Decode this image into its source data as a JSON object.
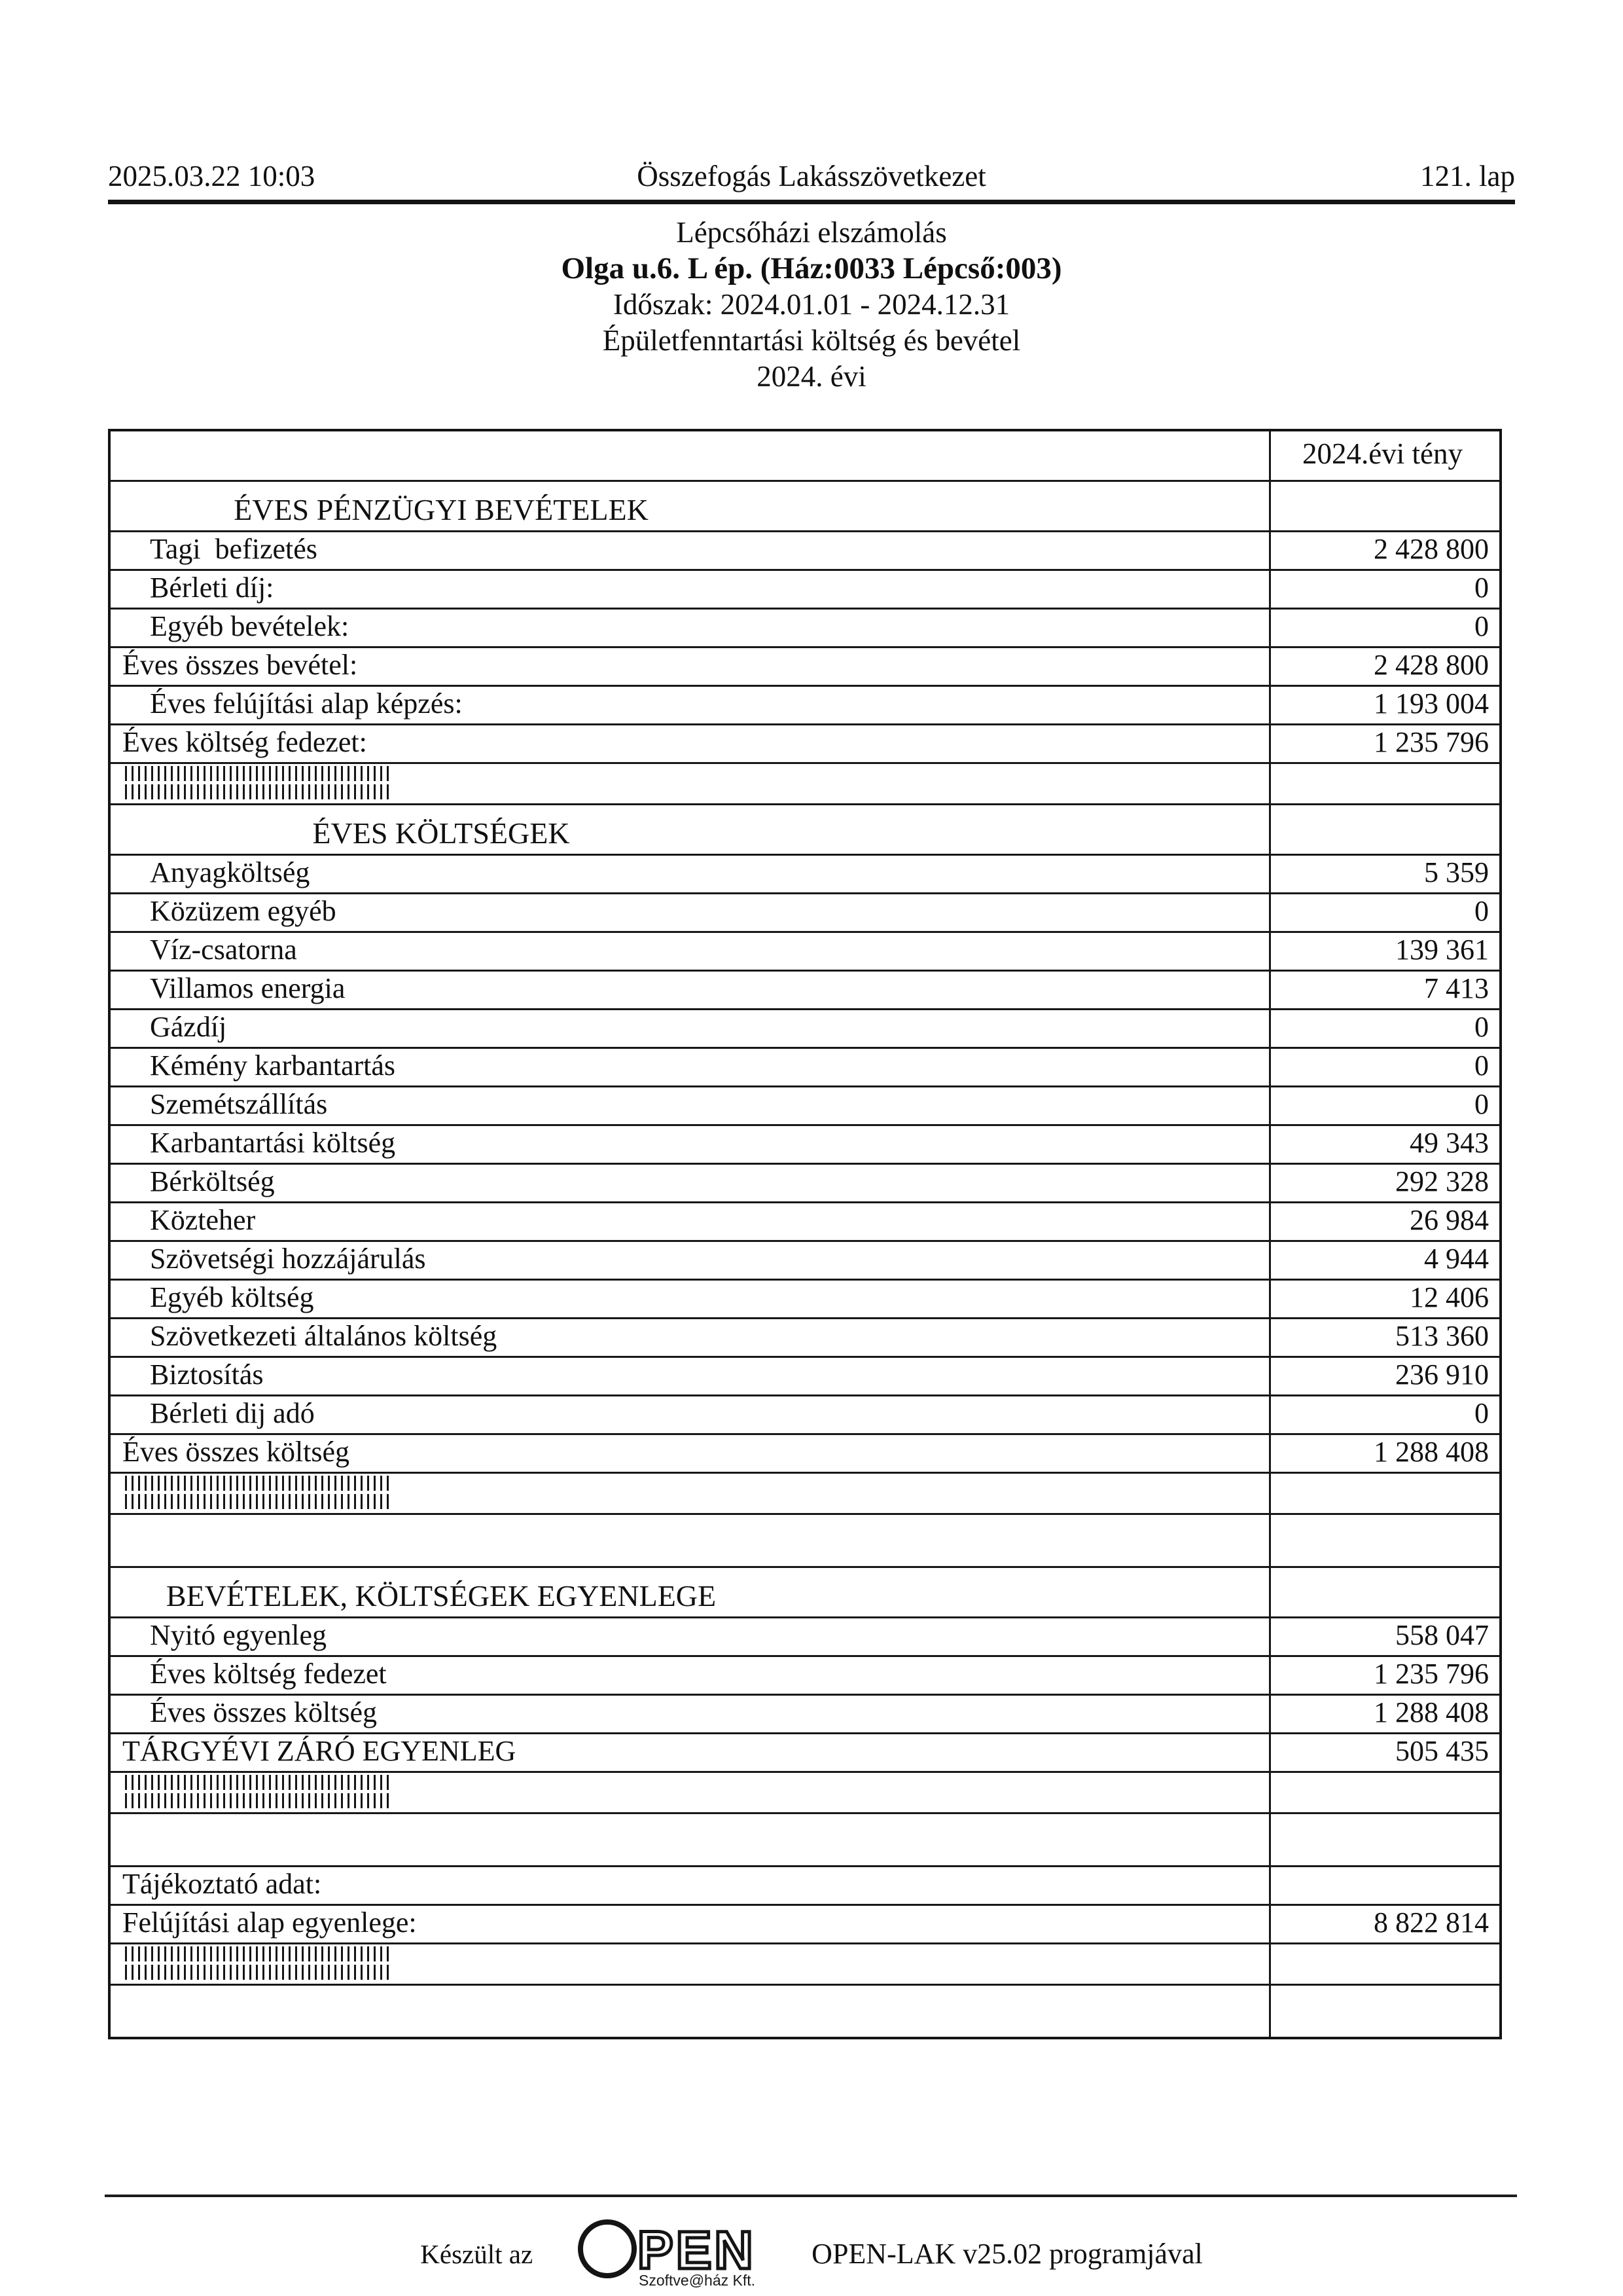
{
  "header": {
    "datetime": "2025.03.22 10:03",
    "organization": "Összefogás Lakásszövetkezet",
    "page_label": "121. lap"
  },
  "headings": {
    "report_type": "Lépcsőházi elszámolás",
    "building": "Olga u.6. L ép. (Ház:0033 Lépcső:003)",
    "period": "Időszak: 2024.01.01 - 2024.12.31",
    "subject": "Épületfenntartási költség és bevétel",
    "year": "2024. évi"
  },
  "table": {
    "value_column_header": "2024.évi tény",
    "rows": [
      {
        "type": "section",
        "label": "ÉVES PÉNZÜGYI BEVÉTELEK",
        "value": ""
      },
      {
        "type": "item",
        "label": "Tagi  befizetés",
        "value": "2 428 800"
      },
      {
        "type": "item",
        "label": "Bérleti díj:",
        "value": "0"
      },
      {
        "type": "item",
        "label": "Egyéb bevételek:",
        "value": "0"
      },
      {
        "type": "total",
        "label": "Éves összes bevétel:",
        "value": "2 428 800"
      },
      {
        "type": "item",
        "label": "Éves felújítási alap képzés:",
        "value": "1 193 004"
      },
      {
        "type": "total",
        "label": "Éves költség fedezet:",
        "value": "1 235 796"
      },
      {
        "type": "barcode",
        "label": "",
        "value": ""
      },
      {
        "type": "section",
        "label": "ÉVES KÖLTSÉGEK",
        "value": ""
      },
      {
        "type": "item",
        "label": "Anyagköltség",
        "value": "5 359"
      },
      {
        "type": "item",
        "label": "Közüzem egyéb",
        "value": "0"
      },
      {
        "type": "item",
        "label": "Víz-csatorna",
        "value": "139 361"
      },
      {
        "type": "item",
        "label": "Villamos energia",
        "value": "7 413"
      },
      {
        "type": "item",
        "label": "Gázdíj",
        "value": "0"
      },
      {
        "type": "item",
        "label": "Kémény karbantartás",
        "value": "0"
      },
      {
        "type": "item",
        "label": "Szemétszállítás",
        "value": "0"
      },
      {
        "type": "item",
        "label": "Karbantartási költség",
        "value": "49 343"
      },
      {
        "type": "item",
        "label": "Bérköltség",
        "value": "292 328"
      },
      {
        "type": "item",
        "label": "Közteher",
        "value": "26 984"
      },
      {
        "type": "item",
        "label": "Szövetségi hozzájárulás",
        "value": "4 944"
      },
      {
        "type": "item",
        "label": "Egyéb költség",
        "value": "12 406"
      },
      {
        "type": "item",
        "label": "Szövetkezeti általános költség",
        "value": "513 360"
      },
      {
        "type": "item",
        "label": "Biztosítás",
        "value": "236 910"
      },
      {
        "type": "item",
        "label": "Bérleti dij adó",
        "value": "0"
      },
      {
        "type": "total",
        "label": "Éves összes költség",
        "value": "1 288 408"
      },
      {
        "type": "barcode",
        "label": "",
        "value": ""
      },
      {
        "type": "spacer",
        "label": "",
        "value": ""
      },
      {
        "type": "section",
        "label": "BEVÉTELEK, KÖLTSÉGEK EGYENLEGE",
        "value": ""
      },
      {
        "type": "item",
        "label": "Nyitó egyenleg",
        "value": "558 047"
      },
      {
        "type": "item",
        "label": "Éves költség fedezet",
        "value": "1 235 796"
      },
      {
        "type": "item",
        "label": "Éves összes költség",
        "value": "1 288 408"
      },
      {
        "type": "total",
        "label": "TÁRGYÉVI ZÁRÓ EGYENLEG",
        "value": "505 435"
      },
      {
        "type": "barcode",
        "label": "",
        "value": ""
      },
      {
        "type": "spacer",
        "label": "",
        "value": ""
      },
      {
        "type": "info",
        "label": "Tájékoztató adat:",
        "value": ""
      },
      {
        "type": "total",
        "label": "Felújítási alap egyenlege:",
        "value": "8 822 814"
      },
      {
        "type": "barcode",
        "label": "",
        "value": ""
      },
      {
        "type": "spacer",
        "label": "",
        "value": ""
      }
    ]
  },
  "footer": {
    "made_with_prefix": "Készült az",
    "logo_text": "PEN",
    "logo_caption": "Szoftve@ház Kft.",
    "program_label": "OPEN-LAK v25.02 programjával"
  }
}
